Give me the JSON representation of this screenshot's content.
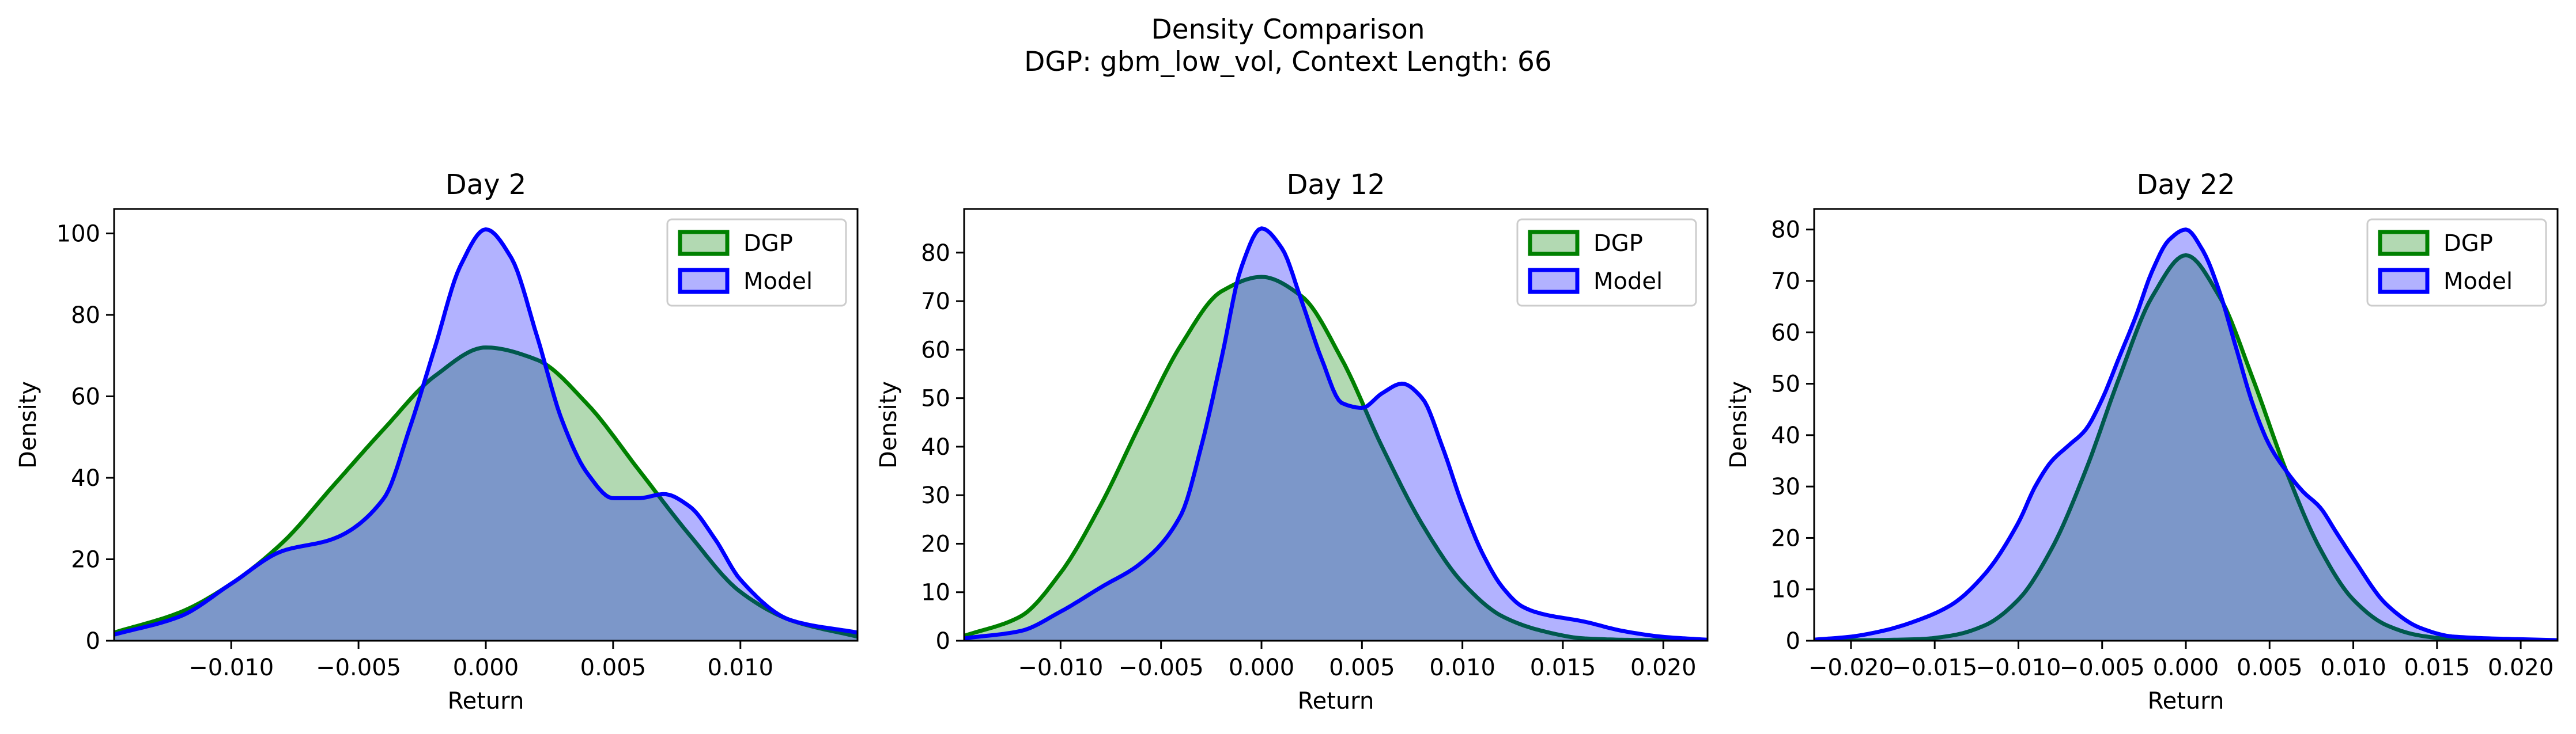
{
  "figure": {
    "title": "Density Comparison",
    "subtitle": "DGP: gbm_low_vol, Context Length: 66"
  },
  "colors": {
    "dgp_line": "#008000",
    "dgp_fill": "#008000",
    "model_line": "#0000ff",
    "model_fill": "#0000ff",
    "overlap": "#7f97c8"
  },
  "chart_data": [
    {
      "type": "area",
      "title": "Day 2",
      "xlabel": "Return",
      "ylabel": "Density",
      "xlim": [
        -0.0146,
        0.0146
      ],
      "ylim": [
        0,
        106
      ],
      "xticks": [
        -0.01,
        -0.005,
        0.0,
        0.005,
        0.01
      ],
      "xtick_labels": [
        "−0.010",
        "−0.005",
        "0.000",
        "0.005",
        "0.010"
      ],
      "yticks": [
        0,
        20,
        40,
        60,
        80,
        100
      ],
      "legend": "top-right",
      "series": [
        {
          "name": "DGP",
          "x": [
            -0.0146,
            -0.012,
            -0.01,
            -0.008,
            -0.006,
            -0.004,
            -0.002,
            0.0,
            0.002,
            0.004,
            0.006,
            0.008,
            0.01,
            0.012,
            0.0146
          ],
          "y": [
            2,
            7,
            14,
            24,
            38,
            52,
            65,
            72,
            69,
            58,
            42,
            26,
            12,
            5,
            1
          ]
        },
        {
          "name": "Model",
          "x": [
            -0.0146,
            -0.012,
            -0.01,
            -0.008,
            -0.006,
            -0.004,
            -0.003,
            -0.002,
            -0.001,
            0.0,
            0.001,
            0.002,
            0.003,
            0.004,
            0.005,
            0.006,
            0.007,
            0.008,
            0.009,
            0.01,
            0.012,
            0.0146
          ],
          "y": [
            1.5,
            6,
            14,
            22,
            25,
            35,
            52,
            72,
            92,
            101,
            94,
            75,
            54,
            41,
            35,
            35,
            36,
            33,
            25,
            15,
            5,
            2
          ]
        }
      ]
    },
    {
      "type": "area",
      "title": "Day 12",
      "xlabel": "Return",
      "ylabel": "Density",
      "xlim": [
        -0.0148,
        0.0222
      ],
      "ylim": [
        0,
        89
      ],
      "xticks": [
        -0.01,
        -0.005,
        0.0,
        0.005,
        0.01,
        0.015,
        0.02
      ],
      "xtick_labels": [
        "−0.010",
        "−0.005",
        "0.000",
        "0.005",
        "0.010",
        "0.015",
        "0.020"
      ],
      "yticks": [
        0,
        10,
        20,
        30,
        40,
        50,
        60,
        70,
        80
      ],
      "legend": "top-right",
      "series": [
        {
          "name": "DGP",
          "x": [
            -0.0148,
            -0.012,
            -0.01,
            -0.008,
            -0.006,
            -0.004,
            -0.002,
            0.0,
            0.002,
            0.004,
            0.006,
            0.008,
            0.01,
            0.012,
            0.014,
            0.016,
            0.018,
            0.0222
          ],
          "y": [
            1,
            5,
            14,
            28,
            45,
            61,
            72,
            75,
            71,
            58,
            40,
            24,
            12,
            5,
            2,
            0.5,
            0.2,
            0
          ]
        },
        {
          "name": "Model",
          "x": [
            -0.0148,
            -0.012,
            -0.01,
            -0.008,
            -0.006,
            -0.004,
            -0.003,
            -0.002,
            -0.001,
            0.0,
            0.001,
            0.002,
            0.003,
            0.004,
            0.005,
            0.006,
            0.007,
            0.008,
            0.009,
            0.01,
            0.011,
            0.012,
            0.013,
            0.014,
            0.016,
            0.018,
            0.02,
            0.0222
          ],
          "y": [
            0.5,
            2,
            6,
            11,
            16,
            26,
            40,
            58,
            77,
            85,
            81,
            70,
            58,
            49,
            48,
            51,
            53,
            50,
            40,
            28,
            18,
            11,
            7,
            5.5,
            4,
            2,
            0.8,
            0.2
          ]
        }
      ]
    },
    {
      "type": "area",
      "title": "Day 22",
      "xlabel": "Return",
      "ylabel": "Density",
      "xlim": [
        -0.0222,
        0.0222
      ],
      "ylim": [
        0,
        84
      ],
      "xticks": [
        -0.02,
        -0.015,
        -0.01,
        -0.005,
        0.0,
        0.005,
        0.01,
        0.015,
        0.02
      ],
      "xtick_labels": [
        "−0.020",
        "−0.015",
        "−0.010",
        "−0.005",
        "0.000",
        "0.005",
        "0.010",
        "0.015",
        "0.020"
      ],
      "yticks": [
        0,
        10,
        20,
        30,
        40,
        50,
        60,
        70,
        80
      ],
      "legend": "top-right",
      "series": [
        {
          "name": "DGP",
          "x": [
            -0.0222,
            -0.016,
            -0.014,
            -0.012,
            -0.01,
            -0.008,
            -0.006,
            -0.004,
            -0.002,
            0.0,
            0.002,
            0.004,
            0.006,
            0.008,
            0.01,
            0.012,
            0.014,
            0.016,
            0.0222
          ],
          "y": [
            0,
            0.3,
            1,
            3,
            8,
            18,
            33,
            51,
            67,
            75,
            67,
            51,
            33,
            18,
            8,
            3,
            1,
            0.3,
            0
          ]
        },
        {
          "name": "Model",
          "x": [
            -0.0222,
            -0.02,
            -0.018,
            -0.016,
            -0.014,
            -0.012,
            -0.01,
            -0.009,
            -0.008,
            -0.007,
            -0.006,
            -0.005,
            -0.004,
            -0.003,
            -0.002,
            -0.001,
            0.0,
            0.001,
            0.002,
            0.003,
            0.004,
            0.005,
            0.006,
            0.007,
            0.008,
            0.009,
            0.01,
            0.012,
            0.014,
            0.016,
            0.0222
          ],
          "y": [
            0.2,
            0.8,
            2,
            4,
            7,
            13,
            23,
            30,
            35,
            38,
            41,
            47,
            55,
            63,
            72,
            78,
            80,
            76,
            68,
            57,
            46,
            38,
            33,
            29,
            26,
            21,
            16,
            7,
            2.5,
            0.8,
            0.1
          ]
        }
      ]
    }
  ]
}
